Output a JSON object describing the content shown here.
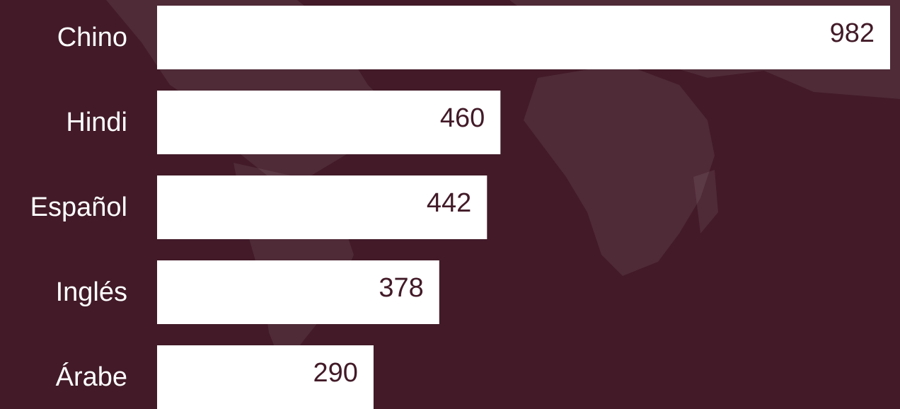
{
  "chart_data": {
    "type": "bar",
    "orientation": "horizontal",
    "categories": [
      "Chino",
      "Hindi",
      "Español",
      "Inglés",
      "Árabe"
    ],
    "values": [
      982,
      460,
      442,
      378,
      290
    ],
    "color": "#ffffff",
    "label_color": "#421a28",
    "background": "#421a28"
  }
}
